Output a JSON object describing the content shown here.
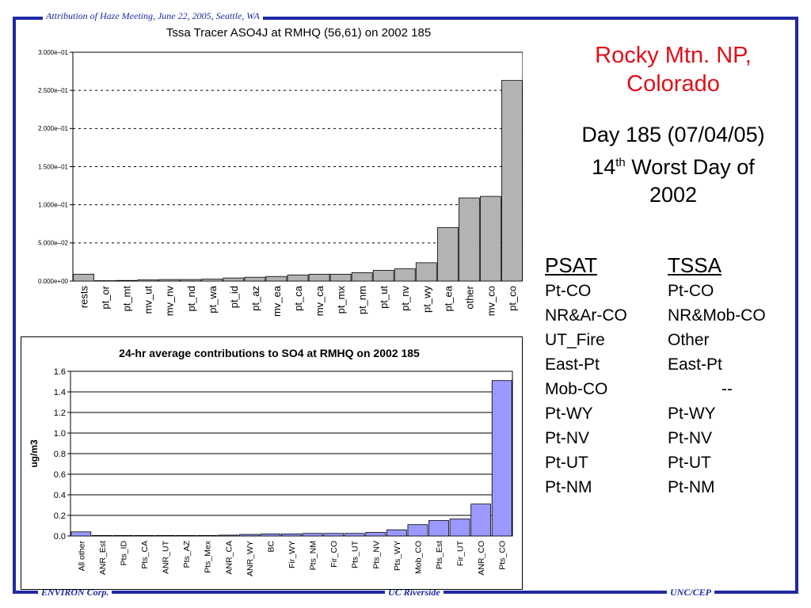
{
  "header": "Attribution of Haze Meeting, June 22, 2005, Seattle, WA",
  "footer": {
    "left": "ENVIRON Corp.",
    "middle": "UC Riverside",
    "right": "UNC/CEP"
  },
  "colors": {
    "frame": "#1f2aa3",
    "site_title": "#e0101a",
    "chart1_bar": "#b3b3b3",
    "chart2_bar": "#9999ff"
  },
  "site": {
    "line1": "Rocky Mtn. NP,",
    "line2": "Colorado"
  },
  "day": {
    "line1": "Day 185 (07/04/05)",
    "rank_num": "14",
    "rank_sup": "th",
    "rank_rest": " Worst Day of",
    "line3": "2002"
  },
  "table": {
    "headers": [
      "PSAT",
      "TSSA"
    ],
    "rows": [
      [
        "Pt-CO",
        "Pt-CO"
      ],
      [
        "NR&Ar-CO",
        "NR&Mob-CO"
      ],
      [
        "UT_Fire",
        "Other"
      ],
      [
        "East-Pt",
        "East-Pt"
      ],
      [
        "Mob-CO",
        "--"
      ],
      [
        "Pt-WY",
        "Pt-WY"
      ],
      [
        "Pt-NV",
        "Pt-NV"
      ],
      [
        "Pt-UT",
        "Pt-UT"
      ],
      [
        "Pt-NM",
        "Pt-NM"
      ]
    ]
  },
  "chart_data": [
    {
      "type": "bar",
      "title": "Tssa Tracer ASO4J at RMHQ (56,61) on 2002 185",
      "xlabel": "",
      "ylabel": "",
      "categories": [
        "rests",
        "pt_or",
        "pt_mt",
        "mv_ut",
        "mv_nv",
        "pt_nd",
        "pt_wa",
        "pt_id",
        "pt_az",
        "mv_ea",
        "pt_ca",
        "mv_ca",
        "pt_mx",
        "pt_nm",
        "pt_ut",
        "pt_nv",
        "pt_wy",
        "pt_ea",
        "other",
        "mv_co",
        "pt_co"
      ],
      "values": [
        0.009,
        0.0005,
        0.0008,
        0.0015,
        0.002,
        0.002,
        0.0025,
        0.004,
        0.005,
        0.006,
        0.008,
        0.009,
        0.009,
        0.011,
        0.014,
        0.016,
        0.024,
        0.07,
        0.109,
        0.111,
        0.263
      ],
      "tick_values": [
        0,
        0.05,
        0.1,
        0.15,
        0.2,
        0.25,
        0.3
      ],
      "tick_labels": [
        "0.000e+00",
        "5.000e–02",
        "1.000e–01",
        "1.500e–01",
        "2.000e–01",
        "2.500e–01",
        "3.000e–01"
      ],
      "ylim": [
        0,
        0.3
      ],
      "grid": true,
      "legend": "none"
    },
    {
      "type": "bar",
      "title": "24-hr average contributions to SO4 at RMHQ on 2002 185",
      "xlabel": "",
      "ylabel": "ug/m3",
      "categories": [
        "All other",
        "ANR_Est",
        "Pts_ID",
        "Pts_CA",
        "ANR_UT",
        "Pts_AZ",
        "Pts_Mex",
        "ANR_CA",
        "ANR_WY",
        "BC",
        "Fir_WY",
        "Pts_NM",
        "Fir_CO",
        "Pts_UT",
        "Pts_NV",
        "Pts_WY",
        "Mob_CO",
        "Pts_Est",
        "Fir_UT",
        "ANR_CO",
        "Pts_CO"
      ],
      "values": [
        0.04,
        0.005,
        0.005,
        0.005,
        0.005,
        0.005,
        0.005,
        0.008,
        0.015,
        0.02,
        0.02,
        0.025,
        0.025,
        0.025,
        0.035,
        0.06,
        0.11,
        0.15,
        0.165,
        0.31,
        1.51
      ],
      "tick_values": [
        0,
        0.2,
        0.4,
        0.6,
        0.8,
        1.0,
        1.2,
        1.4,
        1.6
      ],
      "tick_labels": [
        "0.0",
        "0.2",
        "0.4",
        "0.6",
        "0.8",
        "1.0",
        "1.2",
        "1.4",
        "1.6"
      ],
      "ylim": [
        0,
        1.6
      ],
      "grid": true,
      "legend": "none"
    }
  ]
}
